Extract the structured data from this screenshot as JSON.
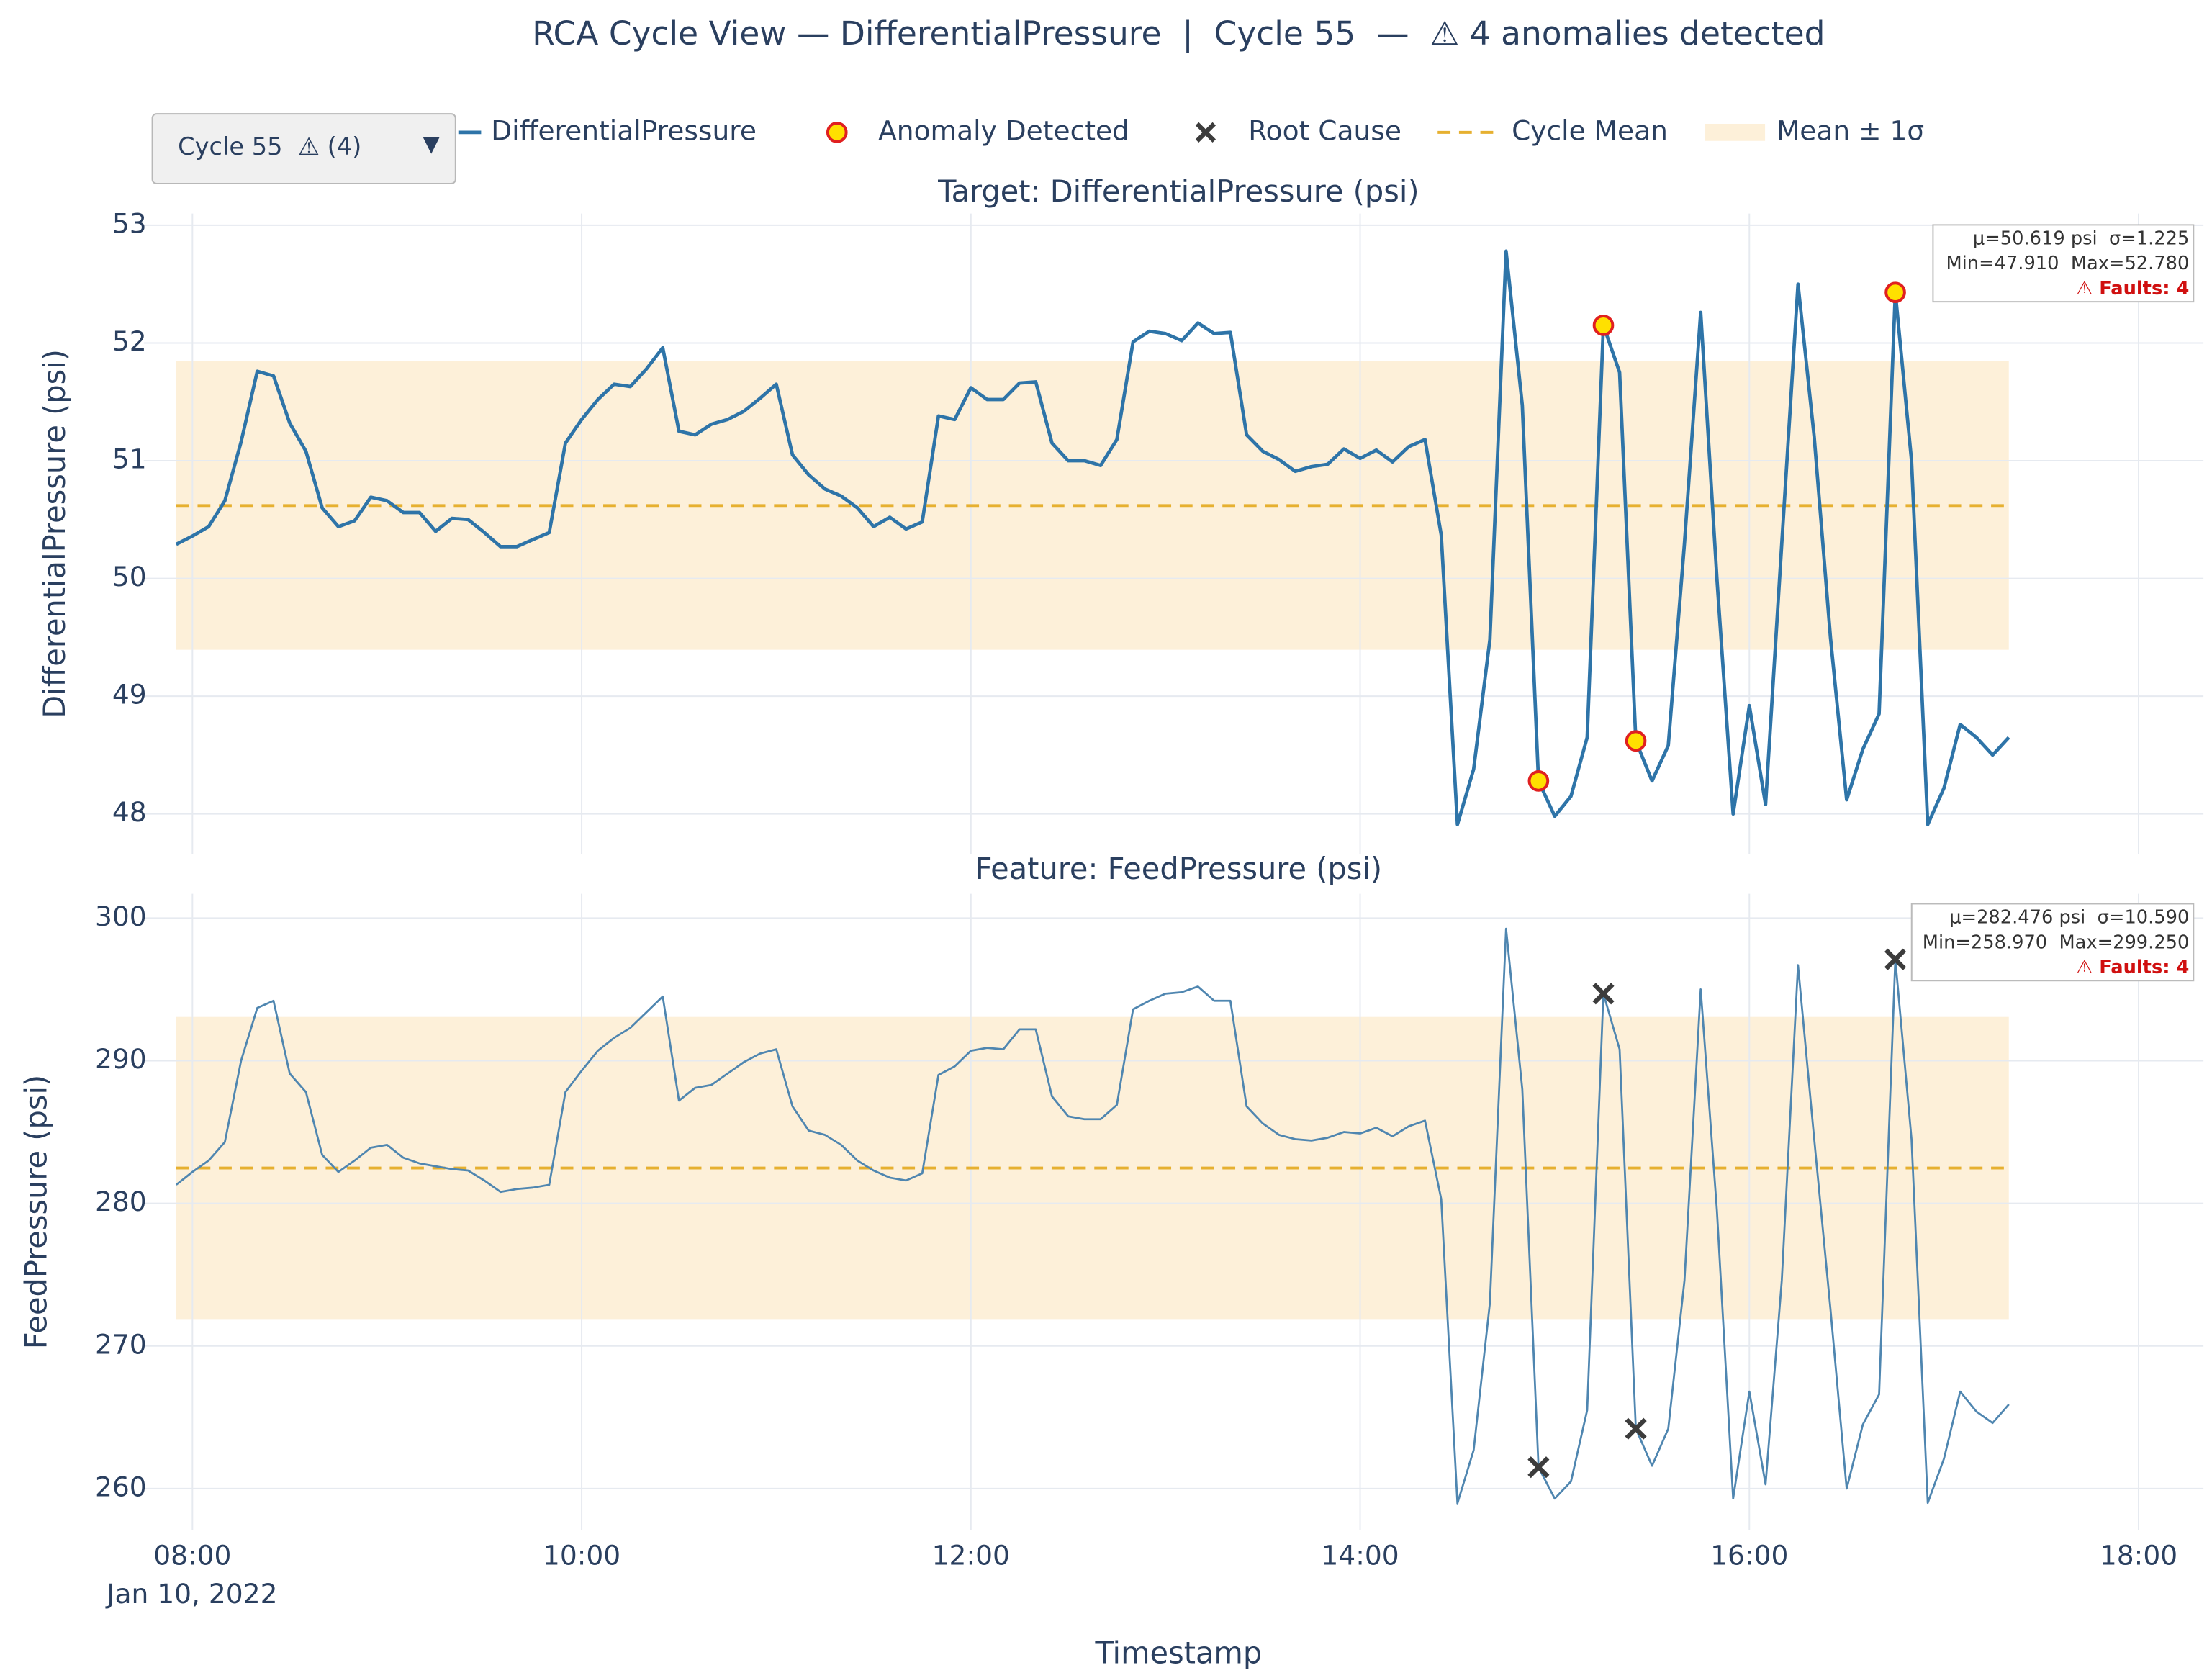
{
  "chart_data": {
    "type": "line",
    "title": "RCA Cycle View — DifferentialPressure  |  Cycle 55  —  ⚠ 4 anomalies detected",
    "dropdown": "Cycle 55  ⚠ (4)",
    "xlabel": "Timestamp",
    "x_date_label": "Jan 10, 2022",
    "xlim": [
      "2022-01-10 07:45",
      "2022-01-10 18:20"
    ],
    "xticks": [
      {
        "value": "2022-01-10 08:00",
        "label": "08:00"
      },
      {
        "value": "2022-01-10 10:00",
        "label": "10:00"
      },
      {
        "value": "2022-01-10 12:00",
        "label": "12:00"
      },
      {
        "value": "2022-01-10 14:00",
        "label": "14:00"
      },
      {
        "value": "2022-01-10 16:00",
        "label": "16:00"
      },
      {
        "value": "2022-01-10 18:00",
        "label": "18:00"
      }
    ],
    "grid": true,
    "x": [
      "2022-01-10 07:55",
      "2022-01-10 08:00",
      "2022-01-10 08:05",
      "2022-01-10 08:10",
      "2022-01-10 08:15",
      "2022-01-10 08:20",
      "2022-01-10 08:25",
      "2022-01-10 08:30",
      "2022-01-10 08:35",
      "2022-01-10 08:40",
      "2022-01-10 08:45",
      "2022-01-10 08:50",
      "2022-01-10 08:55",
      "2022-01-10 09:00",
      "2022-01-10 09:05",
      "2022-01-10 09:10",
      "2022-01-10 09:15",
      "2022-01-10 09:20",
      "2022-01-10 09:25",
      "2022-01-10 09:30",
      "2022-01-10 09:35",
      "2022-01-10 09:40",
      "2022-01-10 09:45",
      "2022-01-10 09:50",
      "2022-01-10 09:55",
      "2022-01-10 10:00",
      "2022-01-10 10:05",
      "2022-01-10 10:10",
      "2022-01-10 10:15",
      "2022-01-10 10:20",
      "2022-01-10 10:25",
      "2022-01-10 10:30",
      "2022-01-10 10:35",
      "2022-01-10 10:40",
      "2022-01-10 10:45",
      "2022-01-10 10:50",
      "2022-01-10 10:55",
      "2022-01-10 11:00",
      "2022-01-10 11:05",
      "2022-01-10 11:10",
      "2022-01-10 11:15",
      "2022-01-10 11:20",
      "2022-01-10 11:25",
      "2022-01-10 11:30",
      "2022-01-10 11:35",
      "2022-01-10 11:40",
      "2022-01-10 11:45",
      "2022-01-10 11:50",
      "2022-01-10 11:55",
      "2022-01-10 12:00",
      "2022-01-10 12:05",
      "2022-01-10 12:10",
      "2022-01-10 12:15",
      "2022-01-10 12:20",
      "2022-01-10 12:25",
      "2022-01-10 12:30",
      "2022-01-10 12:35",
      "2022-01-10 12:40",
      "2022-01-10 12:45",
      "2022-01-10 12:50",
      "2022-01-10 12:55",
      "2022-01-10 13:00",
      "2022-01-10 13:05",
      "2022-01-10 13:10",
      "2022-01-10 13:15",
      "2022-01-10 13:20",
      "2022-01-10 13:25",
      "2022-01-10 13:30",
      "2022-01-10 13:35",
      "2022-01-10 13:40",
      "2022-01-10 13:45",
      "2022-01-10 13:50",
      "2022-01-10 13:55",
      "2022-01-10 14:00",
      "2022-01-10 14:05",
      "2022-01-10 14:10",
      "2022-01-10 14:15",
      "2022-01-10 14:20",
      "2022-01-10 14:25",
      "2022-01-10 14:30",
      "2022-01-10 14:35",
      "2022-01-10 14:40",
      "2022-01-10 14:45",
      "2022-01-10 14:50",
      "2022-01-10 14:55",
      "2022-01-10 15:00",
      "2022-01-10 15:05",
      "2022-01-10 15:10",
      "2022-01-10 15:15",
      "2022-01-10 15:20",
      "2022-01-10 15:25",
      "2022-01-10 15:30",
      "2022-01-10 15:35",
      "2022-01-10 15:40",
      "2022-01-10 15:45",
      "2022-01-10 15:50",
      "2022-01-10 15:55",
      "2022-01-10 16:00",
      "2022-01-10 16:05",
      "2022-01-10 16:10",
      "2022-01-10 16:15",
      "2022-01-10 16:20",
      "2022-01-10 16:25",
      "2022-01-10 16:30",
      "2022-01-10 16:35",
      "2022-01-10 16:40",
      "2022-01-10 16:45",
      "2022-01-10 16:50",
      "2022-01-10 16:55",
      "2022-01-10 17:00",
      "2022-01-10 17:05",
      "2022-01-10 17:10",
      "2022-01-10 17:15",
      "2022-01-10 17:20"
    ],
    "panels": [
      {
        "title": "Target: DifferentialPressure (psi)",
        "ylabel": "DifferentialPressure (psi)",
        "ylim": [
          47.66,
          53.1
        ],
        "yticks": [
          48,
          49,
          50,
          51,
          52,
          53
        ],
        "series": [
          {
            "name": "DifferentialPressure",
            "color": "#2e74a8",
            "values": [
              50.29,
              50.36,
              50.44,
              50.66,
              51.16,
              51.76,
              51.72,
              51.32,
              51.08,
              50.6,
              50.44,
              50.49,
              50.69,
              50.66,
              50.56,
              50.56,
              50.4,
              50.51,
              50.5,
              50.39,
              50.27,
              50.27,
              50.33,
              50.39,
              51.15,
              51.35,
              51.52,
              51.65,
              51.63,
              51.78,
              51.96,
              51.25,
              51.22,
              51.31,
              51.35,
              51.42,
              51.53,
              51.65,
              51.05,
              50.88,
              50.76,
              50.7,
              50.6,
              50.44,
              50.52,
              50.42,
              50.48,
              51.38,
              51.35,
              51.62,
              51.52,
              51.52,
              51.66,
              51.67,
              51.15,
              51.0,
              51.0,
              50.96,
              51.18,
              52.01,
              52.1,
              52.08,
              52.02,
              52.17,
              52.08,
              52.09,
              51.22,
              51.08,
              51.01,
              50.91,
              50.95,
              50.97,
              51.1,
              51.02,
              51.09,
              50.99,
              51.12,
              51.18,
              50.37,
              47.91,
              48.38,
              49.48,
              52.78,
              51.47,
              48.28,
              47.98,
              48.15,
              48.65,
              52.15,
              51.75,
              48.62,
              48.28,
              48.58,
              50.3,
              52.26,
              50.0,
              48.0,
              48.92,
              48.08,
              50.3,
              52.5,
              51.2,
              49.5,
              48.12,
              48.55,
              48.85,
              52.43,
              51.0,
              47.91,
              48.22,
              48.76,
              48.65,
              48.5,
              48.65
            ]
          }
        ],
        "markers": {
          "name": "Anomaly Detected",
          "kind": "circle",
          "color": "#ffe000",
          "edge": "#e02020",
          "x": [
            "2022-01-10 14:55",
            "2022-01-10 15:15",
            "2022-01-10 15:25",
            "2022-01-10 16:45"
          ],
          "values": [
            48.28,
            52.15,
            48.62,
            52.43
          ]
        },
        "mean": {
          "name": "Cycle Mean",
          "value": 50.619,
          "color": "#e6b030"
        },
        "band": {
          "name": "Mean ± 1σ",
          "sigma": 1.225,
          "color": "#fdf0d9"
        },
        "stats": [
          "μ=50.619 psi  σ=1.225",
          "Min=47.910  Max=52.780",
          "⚠ Faults: 4"
        ]
      },
      {
        "title": "Feature: FeedPressure (psi)",
        "ylabel": "FeedPressure (psi)",
        "ylim": [
          257.1,
          301.7
        ],
        "yticks": [
          260,
          270,
          280,
          290,
          300
        ],
        "series": [
          {
            "color": "#4f86b0",
            "values": [
              281.3,
              282.2,
              283.0,
              284.3,
              290.0,
              293.7,
              294.2,
              289.1,
              287.8,
              283.4,
              282.2,
              283.0,
              283.9,
              284.1,
              283.2,
              282.8,
              282.6,
              282.4,
              282.3,
              281.6,
              280.8,
              281.0,
              281.1,
              281.3,
              287.8,
              289.3,
              290.7,
              291.6,
              292.3,
              293.4,
              294.5,
              287.2,
              288.1,
              288.3,
              289.1,
              289.9,
              290.5,
              290.8,
              286.8,
              285.1,
              284.8,
              284.1,
              283.0,
              282.3,
              281.8,
              281.6,
              282.1,
              289.0,
              289.6,
              290.7,
              290.9,
              290.8,
              292.2,
              292.2,
              287.5,
              286.1,
              285.9,
              285.9,
              286.9,
              293.6,
              294.2,
              294.7,
              294.8,
              295.2,
              294.2,
              294.2,
              286.8,
              285.6,
              284.8,
              284.5,
              284.4,
              284.6,
              285.0,
              284.9,
              285.3,
              284.7,
              285.4,
              285.8,
              280.3,
              258.97,
              262.7,
              273.0,
              299.25,
              288.0,
              261.5,
              259.3,
              260.5,
              265.5,
              294.7,
              290.8,
              264.2,
              261.6,
              264.2,
              274.6,
              295.0,
              279.5,
              259.3,
              266.8,
              260.3,
              274.6,
              296.7,
              284.5,
              272.6,
              260.0,
              264.5,
              266.6,
              297.1,
              284.5,
              259.0,
              262.1,
              266.8,
              265.4,
              264.6,
              265.9
            ]
          }
        ],
        "markers": {
          "name": "Root Cause",
          "kind": "x",
          "color": "#3c3c3c",
          "x": [
            "2022-01-10 14:55",
            "2022-01-10 15:15",
            "2022-01-10 15:25",
            "2022-01-10 16:45"
          ],
          "values": [
            261.5,
            294.7,
            264.2,
            297.1
          ]
        },
        "mean": {
          "value": 282.476,
          "color": "#e6b030"
        },
        "band": {
          "sigma": 10.59,
          "color": "#fdf0d9"
        },
        "stats": [
          "μ=282.476 psi  σ=10.590",
          "Min=258.970  Max=299.250",
          "⚠ Faults: 4"
        ]
      }
    ]
  }
}
